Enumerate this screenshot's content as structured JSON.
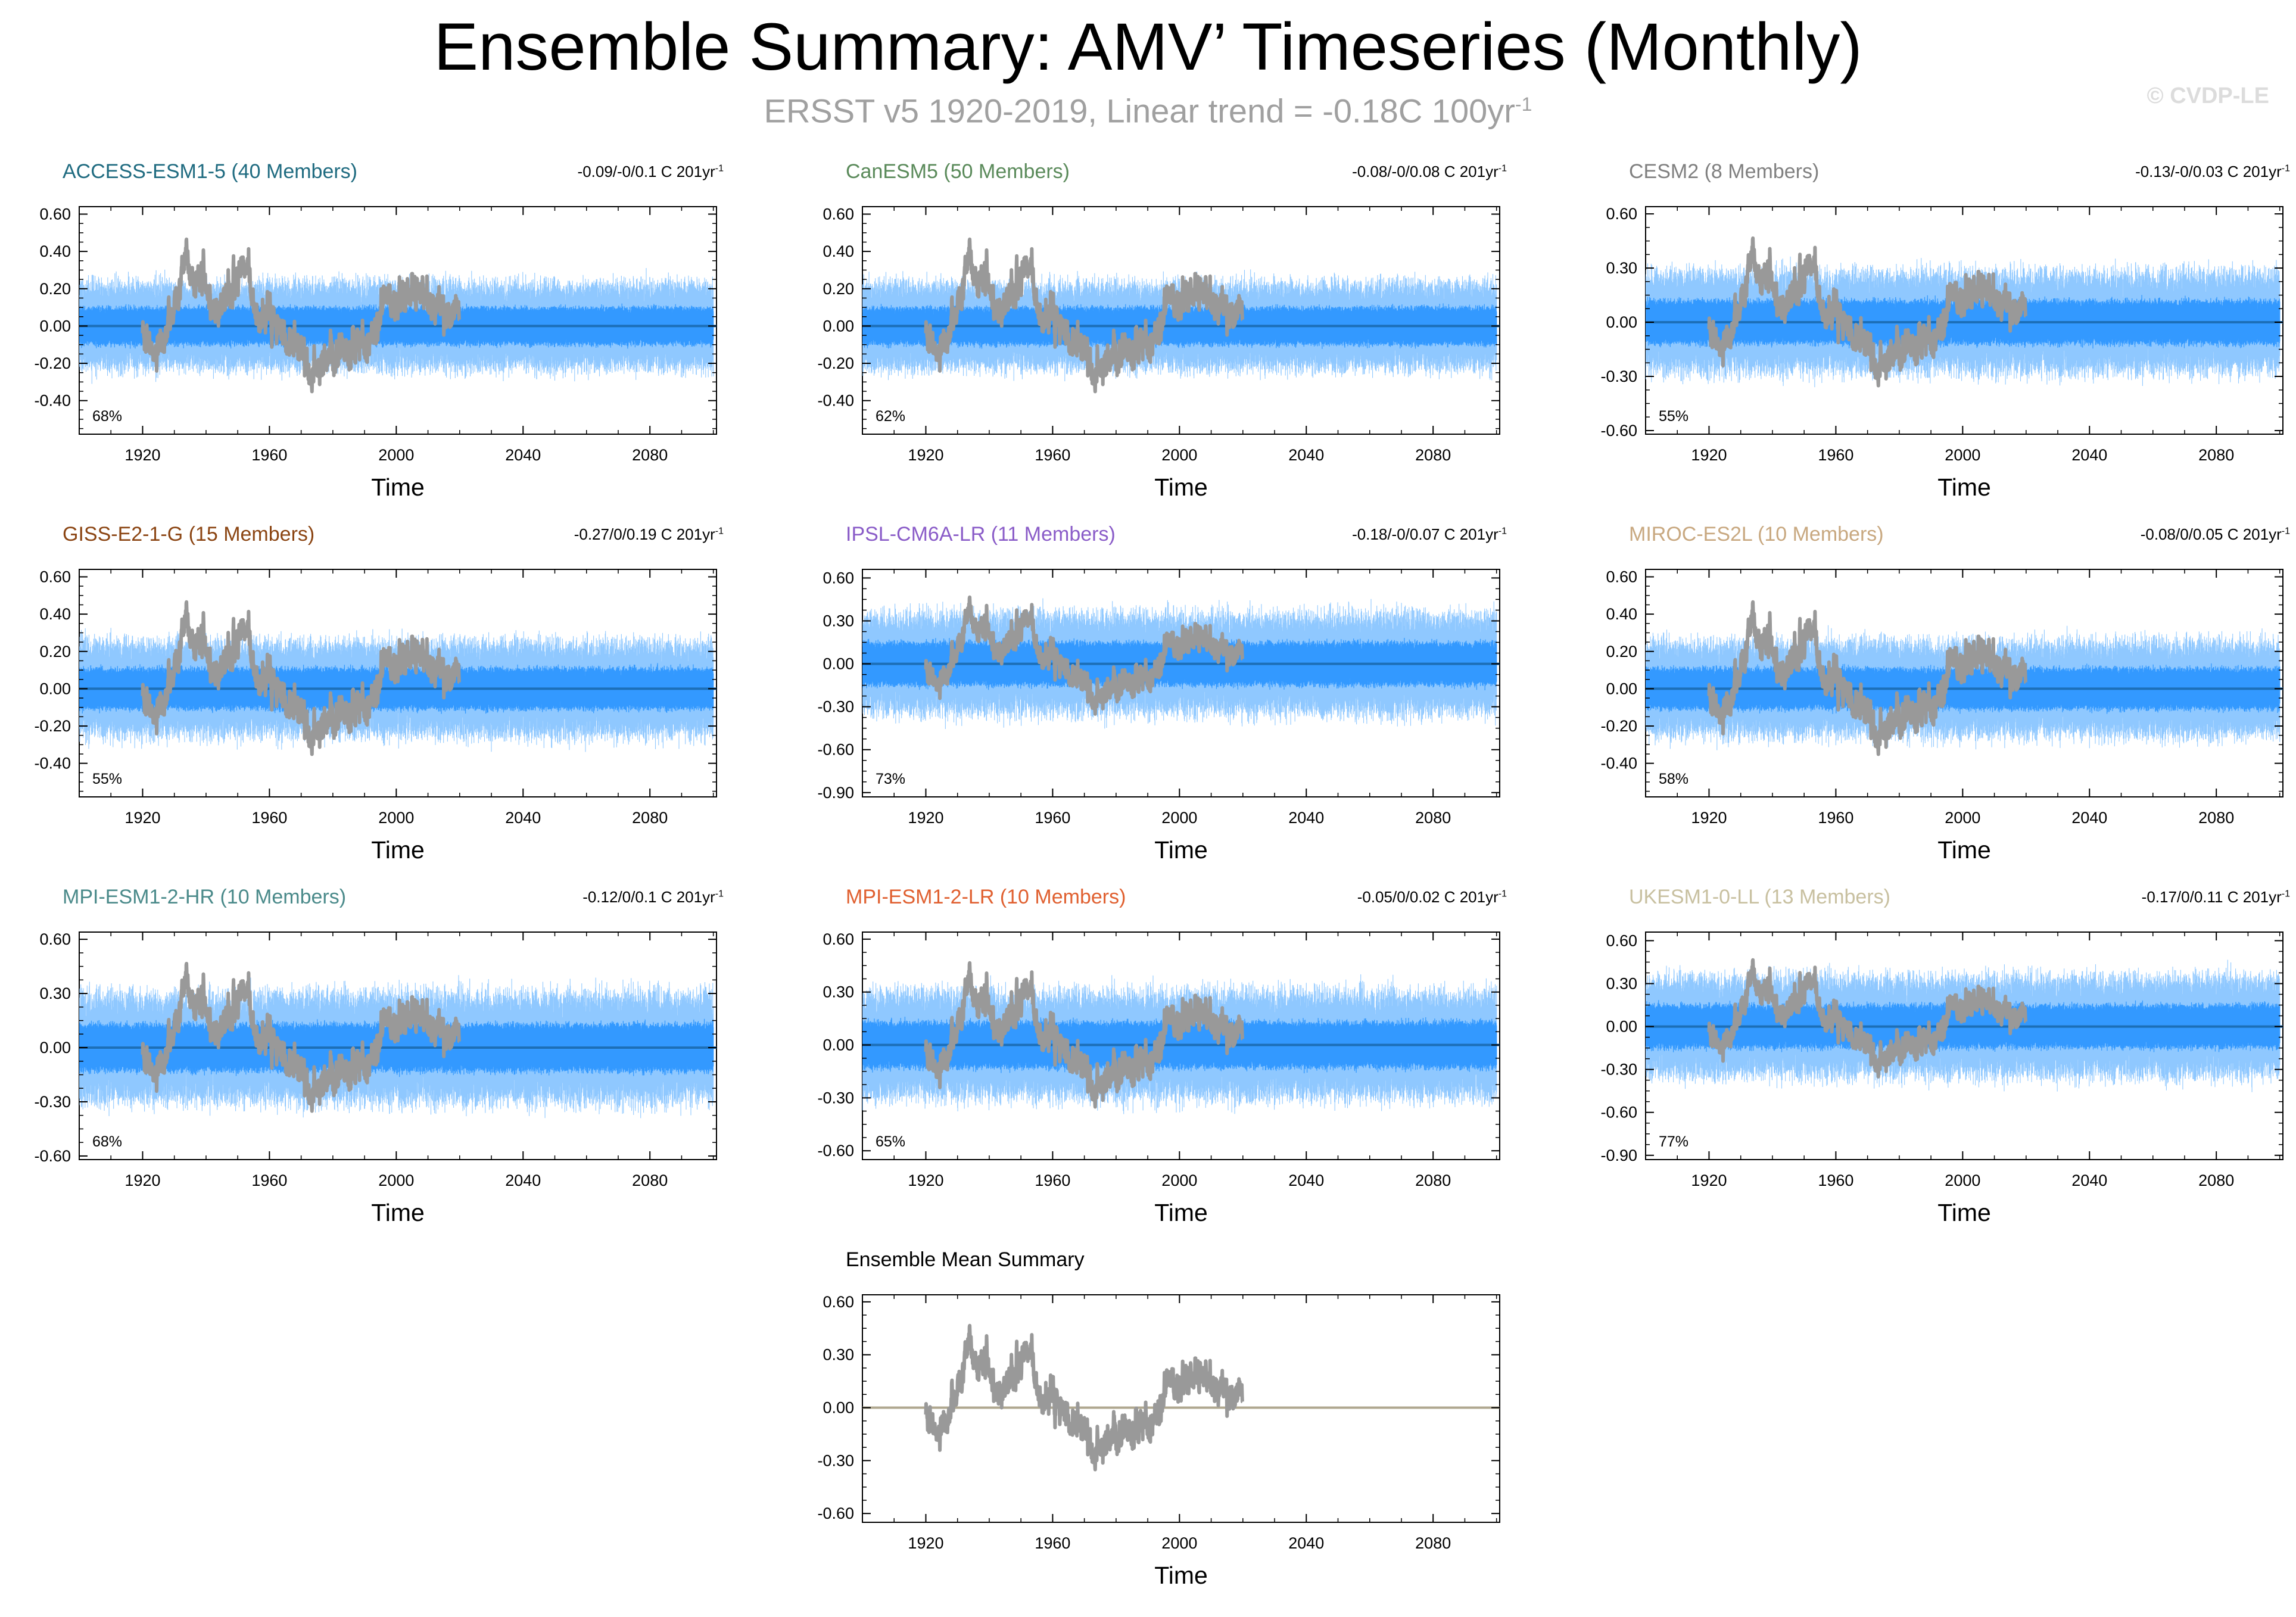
{
  "header": {
    "title": "Ensemble Summary: AMV’ Timeseries (Monthly)",
    "subtitle": "ERSST v5 1920-2019, Linear trend = -0.18C 100yr",
    "subtitle_sup": "-1",
    "watermark": "© CVDP-LE"
  },
  "colors": {
    "observed": "#999999",
    "member_spread": "#3399ff",
    "member_light": "#8fc8ff",
    "axes": "#000000"
  },
  "chart_data": [
    {
      "type": "line",
      "title": "ACCESS-ESM1-5 (40 Members)",
      "title_color": "#1f6b80",
      "trend_text": "-0.09/-0/0.1 C 201yr",
      "trend_sup": "-1",
      "percent": "68%",
      "xlabel": "Time",
      "xlim": [
        1900,
        2101
      ],
      "ylim": [
        -0.58,
        0.64
      ],
      "yticks": [
        -0.4,
        -0.2,
        0.0,
        0.2,
        0.4,
        0.6
      ],
      "ytick_labels": [
        "-0.40",
        "-0.20",
        "0.00",
        "0.20",
        "0.40",
        "0.60"
      ],
      "xticks": [
        1920,
        1960,
        2000,
        2040,
        2080
      ],
      "xtick_labels": [
        "1920",
        "1960",
        "2000",
        "2040",
        "2080"
      ],
      "spread_amp": 0.2,
      "spread_range": [
        1900,
        2100
      ],
      "mean_color": "#1c6fb8"
    },
    {
      "type": "line",
      "title": "CanESM5 (50 Members)",
      "title_color": "#5a8a5a",
      "trend_text": "-0.08/-0/0.08 C 201yr",
      "trend_sup": "-1",
      "percent": "62%",
      "xlabel": "Time",
      "xlim": [
        1900,
        2101
      ],
      "ylim": [
        -0.58,
        0.64
      ],
      "yticks": [
        -0.4,
        -0.2,
        0.0,
        0.2,
        0.4,
        0.6
      ],
      "ytick_labels": [
        "-0.40",
        "-0.20",
        "0.00",
        "0.20",
        "0.40",
        "0.60"
      ],
      "xticks": [
        1920,
        1960,
        2000,
        2040,
        2080
      ],
      "xtick_labels": [
        "1920",
        "1960",
        "2000",
        "2040",
        "2080"
      ],
      "spread_amp": 0.2,
      "spread_range": [
        1900,
        2100
      ],
      "mean_color": "#1c6fb8"
    },
    {
      "type": "line",
      "title": "CESM2 (8 Members)",
      "title_color": "#808080",
      "trend_text": "-0.13/-0/0.03 C 201yr",
      "trend_sup": "-1",
      "percent": "55%",
      "xlabel": "Time",
      "xlim": [
        1900,
        2101
      ],
      "ylim": [
        -0.62,
        0.64
      ],
      "yticks": [
        -0.6,
        -0.3,
        0.0,
        0.3,
        0.6
      ],
      "ytick_labels": [
        "-0.60",
        "-0.30",
        "0.00",
        "0.30",
        "0.60"
      ],
      "xticks": [
        1920,
        1960,
        2000,
        2040,
        2080
      ],
      "xtick_labels": [
        "1920",
        "1960",
        "2000",
        "2040",
        "2080"
      ],
      "spread_amp": 0.24,
      "spread_range": [
        1900,
        2100
      ],
      "mean_color": "#1c6fb8"
    },
    {
      "type": "line",
      "title": "GISS-E2-1-G (15 Members)",
      "title_color": "#8b4513",
      "trend_text": "-0.27/0/0.19 C 201yr",
      "trend_sup": "-1",
      "percent": "55%",
      "xlabel": "Time",
      "xlim": [
        1900,
        2101
      ],
      "ylim": [
        -0.58,
        0.64
      ],
      "yticks": [
        -0.4,
        -0.2,
        0.0,
        0.2,
        0.4,
        0.6
      ],
      "ytick_labels": [
        "-0.40",
        "-0.20",
        "0.00",
        "0.20",
        "0.40",
        "0.60"
      ],
      "xticks": [
        1920,
        1960,
        2000,
        2040,
        2080
      ],
      "xtick_labels": [
        "1920",
        "1960",
        "2000",
        "2040",
        "2080"
      ],
      "spread_amp": 0.22,
      "spread_range": [
        1900,
        2100
      ],
      "mean_color": "#1c6fb8"
    },
    {
      "type": "line",
      "title": "IPSL-CM6A-LR (11 Members)",
      "title_color": "#8a5cc8",
      "trend_text": "-0.18/-0/0.07 C 201yr",
      "trend_sup": "-1",
      "percent": "73%",
      "xlabel": "Time",
      "xlim": [
        1900,
        2101
      ],
      "ylim": [
        -0.93,
        0.66
      ],
      "yticks": [
        -0.9,
        -0.6,
        -0.3,
        0.0,
        0.3,
        0.6
      ],
      "ytick_labels": [
        "-0.90",
        "-0.60",
        "-0.30",
        "0.00",
        "0.30",
        "0.60"
      ],
      "xticks": [
        1920,
        1960,
        2000,
        2040,
        2080
      ],
      "xtick_labels": [
        "1920",
        "1960",
        "2000",
        "2040",
        "2080"
      ],
      "spread_amp": 0.3,
      "spread_range": [
        1900,
        2100
      ],
      "mean_color": "#1c6fb8"
    },
    {
      "type": "line",
      "title": "MIROC-ES2L (10 Members)",
      "title_color": "#c8a880",
      "trend_text": "-0.08/0/0.05 C 201yr",
      "trend_sup": "-1",
      "percent": "58%",
      "xlabel": "Time",
      "xlim": [
        1900,
        2101
      ],
      "ylim": [
        -0.58,
        0.64
      ],
      "yticks": [
        -0.4,
        -0.2,
        0.0,
        0.2,
        0.4,
        0.6
      ],
      "ytick_labels": [
        "-0.40",
        "-0.20",
        "0.00",
        "0.20",
        "0.40",
        "0.60"
      ],
      "xticks": [
        1920,
        1960,
        2000,
        2040,
        2080
      ],
      "xtick_labels": [
        "1920",
        "1960",
        "2000",
        "2040",
        "2080"
      ],
      "spread_amp": 0.22,
      "spread_range": [
        1900,
        2100
      ],
      "mean_color": "#1c6fb8"
    },
    {
      "type": "line",
      "title": "MPI-ESM1-2-HR (10 Members)",
      "title_color": "#4a8a8a",
      "trend_text": "-0.12/0/0.1 C 201yr",
      "trend_sup": "-1",
      "percent": "68%",
      "xlabel": "Time",
      "xlim": [
        1900,
        2101
      ],
      "ylim": [
        -0.62,
        0.64
      ],
      "yticks": [
        -0.6,
        -0.3,
        0.0,
        0.3,
        0.6
      ],
      "ytick_labels": [
        "-0.60",
        "-0.30",
        "0.00",
        "0.30",
        "0.60"
      ],
      "xticks": [
        1920,
        1960,
        2000,
        2040,
        2080
      ],
      "xtick_labels": [
        "1920",
        "1960",
        "2000",
        "2040",
        "2080"
      ],
      "spread_amp": 0.26,
      "spread_range": [
        1900,
        2100
      ],
      "mean_color": "#1c6fb8"
    },
    {
      "type": "line",
      "title": "MPI-ESM1-2-LR (10 Members)",
      "title_color": "#e06030",
      "trend_text": "-0.05/0/0.02 C 201yr",
      "trend_sup": "-1",
      "percent": "65%",
      "xlabel": "Time",
      "xlim": [
        1900,
        2101
      ],
      "ylim": [
        -0.65,
        0.64
      ],
      "yticks": [
        -0.6,
        -0.3,
        0.0,
        0.3,
        0.6
      ],
      "ytick_labels": [
        "-0.60",
        "-0.30",
        "0.00",
        "0.30",
        "0.60"
      ],
      "xticks": [
        1920,
        1960,
        2000,
        2040,
        2080
      ],
      "xtick_labels": [
        "1920",
        "1960",
        "2000",
        "2040",
        "2080"
      ],
      "spread_amp": 0.26,
      "spread_range": [
        1900,
        2100
      ],
      "mean_color": "#1c6fb8"
    },
    {
      "type": "line",
      "title": "UKESM1-0-LL (13 Members)",
      "title_color": "#c8c0a0",
      "trend_text": "-0.17/0/0.11 C 201yr",
      "trend_sup": "-1",
      "percent": "77%",
      "xlabel": "Time",
      "xlim": [
        1900,
        2101
      ],
      "ylim": [
        -0.93,
        0.66
      ],
      "yticks": [
        -0.9,
        -0.6,
        -0.3,
        0.0,
        0.3,
        0.6
      ],
      "ytick_labels": [
        "-0.90",
        "-0.60",
        "-0.30",
        "0.00",
        "0.30",
        "0.60"
      ],
      "xticks": [
        1920,
        1960,
        2000,
        2040,
        2080
      ],
      "xtick_labels": [
        "1920",
        "1960",
        "2000",
        "2040",
        "2080"
      ],
      "spread_amp": 0.3,
      "spread_range": [
        1900,
        2100
      ],
      "mean_color": "#1c6fb8"
    },
    {
      "type": "line",
      "title": "Ensemble Mean Summary",
      "title_color": "#000000",
      "trend_text": "",
      "trend_sup": "",
      "percent": "",
      "xlabel": "Time",
      "xlim": [
        1900,
        2101
      ],
      "ylim": [
        -0.65,
        0.64
      ],
      "yticks": [
        -0.6,
        -0.3,
        0.0,
        0.3,
        0.6
      ],
      "ytick_labels": [
        "-0.60",
        "-0.30",
        "0.00",
        "0.30",
        "0.60"
      ],
      "xticks": [
        1920,
        1960,
        2000,
        2040,
        2080
      ],
      "xtick_labels": [
        "1920",
        "1960",
        "2000",
        "2040",
        "2080"
      ],
      "spread_amp": 0,
      "spread_range": [
        1900,
        2100
      ],
      "mean_color": "#b0a890"
    }
  ],
  "observed_series": {
    "name": "ERSST v5",
    "x_range": [
      1920,
      2019
    ],
    "anchors": [
      [
        1920,
        -0.05
      ],
      [
        1923,
        -0.12
      ],
      [
        1926,
        -0.1
      ],
      [
        1929,
        0.05
      ],
      [
        1932,
        0.25
      ],
      [
        1934,
        0.4
      ],
      [
        1936,
        0.22
      ],
      [
        1939,
        0.3
      ],
      [
        1942,
        0.08
      ],
      [
        1945,
        0.12
      ],
      [
        1948,
        0.2
      ],
      [
        1951,
        0.25
      ],
      [
        1953,
        0.32
      ],
      [
        1955,
        0.12
      ],
      [
        1957,
        0.0
      ],
      [
        1960,
        0.1
      ],
      [
        1962,
        -0.02
      ],
      [
        1964,
        -0.05
      ],
      [
        1967,
        -0.12
      ],
      [
        1969,
        -0.08
      ],
      [
        1971,
        -0.2
      ],
      [
        1973,
        -0.3
      ],
      [
        1975,
        -0.18
      ],
      [
        1977,
        -0.22
      ],
      [
        1979,
        -0.12
      ],
      [
        1981,
        -0.2
      ],
      [
        1983,
        -0.1
      ],
      [
        1985,
        -0.18
      ],
      [
        1987,
        -0.14
      ],
      [
        1989,
        -0.05
      ],
      [
        1991,
        -0.12
      ],
      [
        1993,
        -0.02
      ],
      [
        1995,
        0.05
      ],
      [
        1997,
        0.18
      ],
      [
        1999,
        0.12
      ],
      [
        2001,
        0.15
      ],
      [
        2003,
        0.18
      ],
      [
        2005,
        0.2
      ],
      [
        2007,
        0.17
      ],
      [
        2009,
        0.22
      ],
      [
        2011,
        0.08
      ],
      [
        2013,
        0.12
      ],
      [
        2015,
        0.05
      ],
      [
        2017,
        0.1
      ],
      [
        2019,
        0.08
      ]
    ],
    "noise": 0.17
  }
}
